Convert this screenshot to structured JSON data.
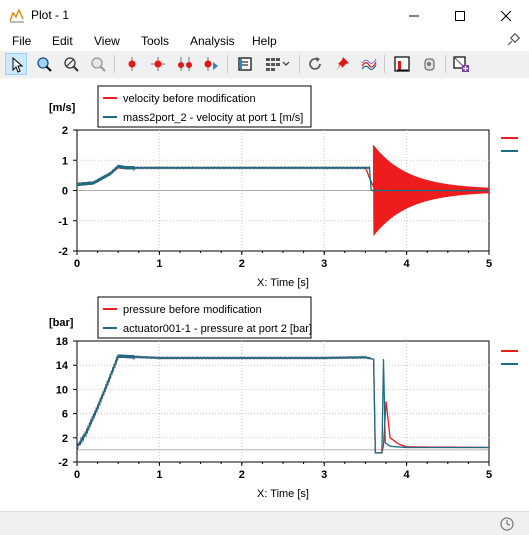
{
  "window": {
    "title": "Plot - 1",
    "controls": [
      "minimize",
      "maximize",
      "close"
    ]
  },
  "menu": [
    "File",
    "Edit",
    "View",
    "Tools",
    "Analysis",
    "Help"
  ],
  "toolbar": {
    "buttons": [
      "pointer-tool",
      "zoom-in-tool",
      "zoom-out-tool",
      "zoom-reset-tool",
      "marker-tool",
      "delta-marker-tool",
      "two-markers-tool",
      "play-markers-tool",
      "export-tool",
      "layout-tool",
      "refresh-tool",
      "pin-tool",
      "curves-tool",
      "fft-tool",
      "settings-tool",
      "add-plot-tool"
    ],
    "active": "pointer-tool"
  },
  "colors": {
    "red": "#ee1c1c",
    "teal": "#1e6b84"
  },
  "chart_data": [
    {
      "type": "line",
      "ylabel": "[m/s]",
      "xlabel": "X: Time [s]",
      "xlim": [
        0,
        5
      ],
      "ylim": [
        -2,
        2
      ],
      "xticks": [
        "0",
        "1",
        "2",
        "3",
        "4",
        "5"
      ],
      "yticks": [
        "-2",
        "-1",
        "0",
        "1",
        "2"
      ],
      "grid": true,
      "legend_position": "top-left",
      "series": [
        {
          "name": "velocity before modification",
          "color": "red",
          "points": [
            [
              0,
              0.2
            ],
            [
              0.2,
              0.25
            ],
            [
              0.4,
              0.55
            ],
            [
              0.5,
              0.78
            ],
            [
              0.6,
              0.75
            ],
            [
              1,
              0.75
            ],
            [
              2,
              0.75
            ],
            [
              3,
              0.75
            ],
            [
              3.5,
              0.75
            ],
            [
              3.6,
              0.1
            ],
            [
              4,
              0.1
            ],
            [
              5,
              0.0
            ]
          ],
          "oscillation": {
            "start": 3.6,
            "end": 5,
            "amplitude": 1.45,
            "decay": 2.4
          }
        },
        {
          "name": "mass2port_2 - velocity at port 1 [m/s]",
          "color": "teal",
          "points": [
            [
              0,
              0.2
            ],
            [
              0.2,
              0.25
            ],
            [
              0.4,
              0.55
            ],
            [
              0.5,
              0.8
            ],
            [
              0.6,
              0.75
            ],
            [
              1,
              0.75
            ],
            [
              2,
              0.75
            ],
            [
              3,
              0.75
            ],
            [
              3.55,
              0.75
            ],
            [
              3.57,
              0.0
            ],
            [
              5,
              0.0
            ]
          ]
        }
      ]
    },
    {
      "type": "line",
      "ylabel": "[bar]",
      "xlabel": "X: Time [s]",
      "xlim": [
        0,
        5
      ],
      "ylim": [
        -2,
        18
      ],
      "xticks": [
        "0",
        "1",
        "2",
        "3",
        "4",
        "5"
      ],
      "yticks": [
        "-2",
        "2",
        "6",
        "10",
        "14",
        "18"
      ],
      "grid": true,
      "legend_position": "top-left",
      "series": [
        {
          "name": "pressure before modification",
          "color": "red",
          "points": [
            [
              0,
              0.5
            ],
            [
              0.1,
              2.5
            ],
            [
              0.25,
              7
            ],
            [
              0.4,
              12
            ],
            [
              0.5,
              15.5
            ],
            [
              1,
              15.2
            ],
            [
              2,
              15.2
            ],
            [
              3,
              15.2
            ],
            [
              3.5,
              15.3
            ],
            [
              3.6,
              15
            ],
            [
              3.62,
              -0.5
            ],
            [
              3.7,
              -0.5
            ],
            [
              3.72,
              0.8
            ],
            [
              3.75,
              8
            ],
            [
              3.8,
              2
            ],
            [
              3.9,
              1
            ],
            [
              4,
              0.5
            ],
            [
              5,
              0.4
            ]
          ]
        },
        {
          "name": "actuator001-1 - pressure at port 2 [bar]",
          "color": "teal",
          "points": [
            [
              0,
              0.5
            ],
            [
              0.1,
              2.5
            ],
            [
              0.25,
              7
            ],
            [
              0.4,
              12
            ],
            [
              0.5,
              15.5
            ],
            [
              1,
              15.2
            ],
            [
              2,
              15.2
            ],
            [
              3,
              15.2
            ],
            [
              3.5,
              15.3
            ],
            [
              3.6,
              15
            ],
            [
              3.62,
              -0.5
            ],
            [
              3.7,
              -0.5
            ],
            [
              3.72,
              15
            ],
            [
              3.74,
              1.2
            ],
            [
              3.8,
              0.6
            ],
            [
              4,
              0.4
            ],
            [
              5,
              0.4
            ]
          ]
        }
      ]
    }
  ]
}
